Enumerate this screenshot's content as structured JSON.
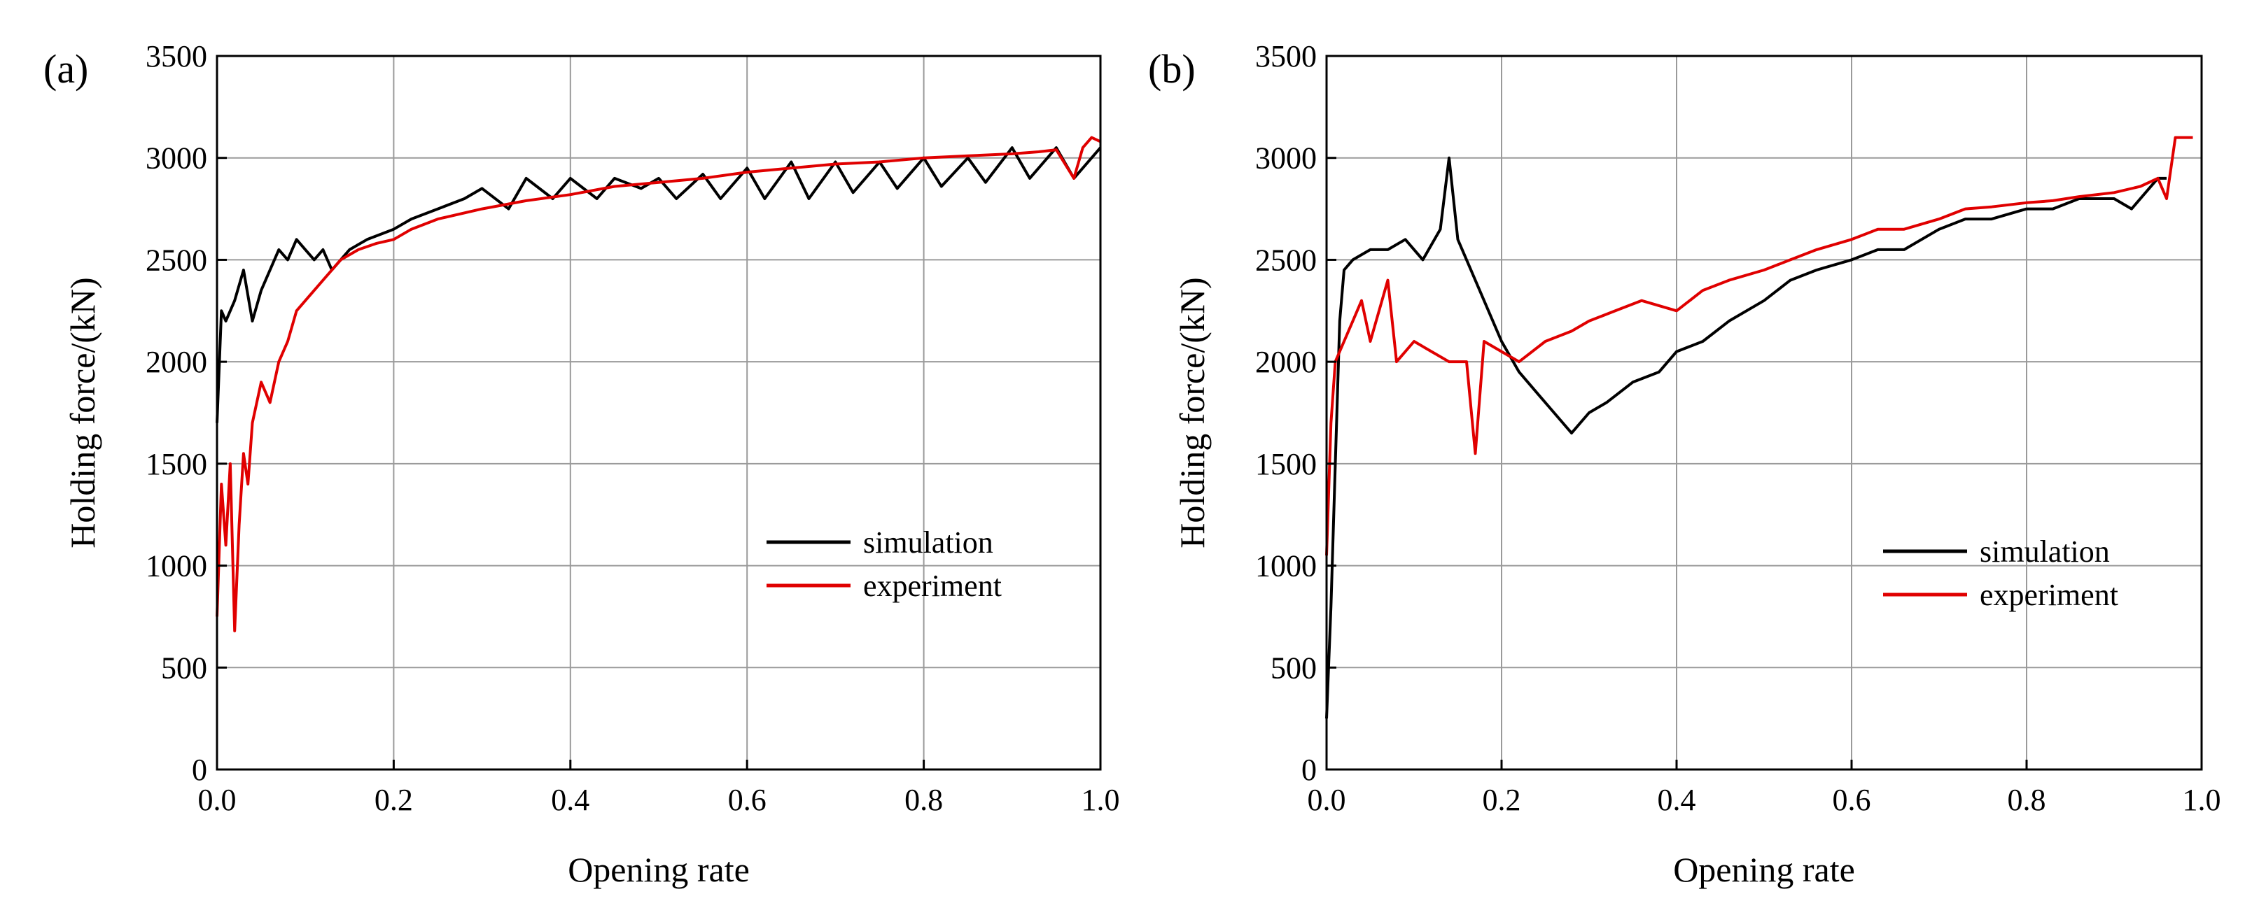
{
  "chart_data": [
    {
      "panel_label": "(a)",
      "type": "line",
      "xlabel": "Opening rate",
      "ylabel": "Holding force/(kN)",
      "xlim": [
        0,
        1.0
      ],
      "ylim": [
        0,
        3500
      ],
      "xticks": [
        "0.0",
        "0.2",
        "0.4",
        "0.6",
        "0.8",
        "1.0"
      ],
      "yticks": [
        "0",
        "500",
        "1000",
        "1500",
        "2000",
        "2500",
        "3000",
        "3500"
      ],
      "grid": true,
      "legend_position": "center-right",
      "series": [
        {
          "name": "simulation",
          "color": "#000000",
          "x": [
            0.0,
            0.005,
            0.01,
            0.02,
            0.03,
            0.04,
            0.05,
            0.06,
            0.07,
            0.08,
            0.09,
            0.1,
            0.11,
            0.12,
            0.13,
            0.14,
            0.15,
            0.17,
            0.2,
            0.22,
            0.25,
            0.28,
            0.3,
            0.33,
            0.35,
            0.38,
            0.4,
            0.43,
            0.45,
            0.48,
            0.5,
            0.52,
            0.55,
            0.57,
            0.6,
            0.62,
            0.65,
            0.67,
            0.7,
            0.72,
            0.75,
            0.77,
            0.8,
            0.82,
            0.85,
            0.87,
            0.9,
            0.92,
            0.95,
            0.97,
            1.0
          ],
          "y": [
            1700,
            2250,
            2200,
            2300,
            2450,
            2200,
            2350,
            2450,
            2550,
            2500,
            2600,
            2550,
            2500,
            2550,
            2450,
            2500,
            2550,
            2600,
            2650,
            2700,
            2750,
            2800,
            2850,
            2750,
            2900,
            2800,
            2900,
            2800,
            2900,
            2850,
            2900,
            2800,
            2920,
            2800,
            2950,
            2800,
            2980,
            2800,
            2980,
            2830,
            2980,
            2850,
            3000,
            2860,
            3000,
            2880,
            3050,
            2900,
            3050,
            2900,
            3050
          ]
        },
        {
          "name": "experiment",
          "color": "#e00000",
          "x": [
            0.0,
            0.005,
            0.01,
            0.015,
            0.02,
            0.025,
            0.03,
            0.035,
            0.04,
            0.05,
            0.06,
            0.07,
            0.08,
            0.09,
            0.1,
            0.12,
            0.14,
            0.16,
            0.18,
            0.2,
            0.22,
            0.25,
            0.3,
            0.35,
            0.4,
            0.45,
            0.5,
            0.55,
            0.6,
            0.65,
            0.7,
            0.75,
            0.8,
            0.85,
            0.9,
            0.93,
            0.95,
            0.97,
            0.98,
            0.99,
            1.0
          ],
          "y": [
            750,
            1400,
            1100,
            1500,
            680,
            1200,
            1550,
            1400,
            1700,
            1900,
            1800,
            2000,
            2100,
            2250,
            2300,
            2400,
            2500,
            2550,
            2580,
            2600,
            2650,
            2700,
            2750,
            2790,
            2820,
            2860,
            2880,
            2900,
            2930,
            2950,
            2970,
            2980,
            3000,
            3010,
            3020,
            3030,
            3040,
            2900,
            3050,
            3100,
            3080
          ]
        }
      ]
    },
    {
      "panel_label": "(b)",
      "type": "line",
      "xlabel": "Opening rate",
      "ylabel": "Holding force/(kN)",
      "xlim": [
        0,
        1.0
      ],
      "ylim": [
        0,
        3500
      ],
      "xticks": [
        "0.0",
        "0.2",
        "0.4",
        "0.6",
        "0.8",
        "1.0"
      ],
      "yticks": [
        "0",
        "500",
        "1000",
        "1500",
        "2000",
        "2500",
        "3000",
        "3500"
      ],
      "grid": true,
      "legend_position": "center-right",
      "series": [
        {
          "name": "simulation",
          "color": "#000000",
          "x": [
            0.0,
            0.005,
            0.01,
            0.015,
            0.02,
            0.03,
            0.05,
            0.07,
            0.09,
            0.11,
            0.13,
            0.14,
            0.15,
            0.16,
            0.18,
            0.2,
            0.22,
            0.24,
            0.26,
            0.28,
            0.3,
            0.32,
            0.35,
            0.38,
            0.4,
            0.43,
            0.46,
            0.5,
            0.53,
            0.56,
            0.6,
            0.63,
            0.66,
            0.7,
            0.73,
            0.76,
            0.8,
            0.83,
            0.86,
            0.9,
            0.92,
            0.94,
            0.95,
            0.96
          ],
          "y": [
            250,
            800,
            1500,
            2200,
            2450,
            2500,
            2550,
            2550,
            2600,
            2500,
            2650,
            3000,
            2600,
            2500,
            2300,
            2100,
            1950,
            1850,
            1750,
            1650,
            1750,
            1800,
            1900,
            1950,
            2050,
            2100,
            2200,
            2300,
            2400,
            2450,
            2500,
            2550,
            2550,
            2650,
            2700,
            2700,
            2750,
            2750,
            2800,
            2800,
            2750,
            2850,
            2900,
            2900
          ]
        },
        {
          "name": "experiment",
          "color": "#e00000",
          "x": [
            0.0,
            0.005,
            0.01,
            0.02,
            0.03,
            0.04,
            0.05,
            0.06,
            0.07,
            0.08,
            0.1,
            0.12,
            0.14,
            0.16,
            0.17,
            0.18,
            0.2,
            0.22,
            0.25,
            0.28,
            0.3,
            0.33,
            0.36,
            0.4,
            0.43,
            0.46,
            0.5,
            0.53,
            0.56,
            0.6,
            0.63,
            0.66,
            0.7,
            0.73,
            0.76,
            0.8,
            0.83,
            0.86,
            0.9,
            0.93,
            0.95,
            0.96,
            0.97,
            0.98,
            0.99
          ],
          "y": [
            1050,
            1700,
            2000,
            2100,
            2200,
            2300,
            2100,
            2250,
            2400,
            2000,
            2100,
            2050,
            2000,
            2000,
            1550,
            2100,
            2050,
            2000,
            2100,
            2150,
            2200,
            2250,
            2300,
            2250,
            2350,
            2400,
            2450,
            2500,
            2550,
            2600,
            2650,
            2650,
            2700,
            2750,
            2760,
            2780,
            2790,
            2810,
            2830,
            2860,
            2900,
            2800,
            3100,
            3100,
            3100
          ]
        }
      ]
    }
  ]
}
